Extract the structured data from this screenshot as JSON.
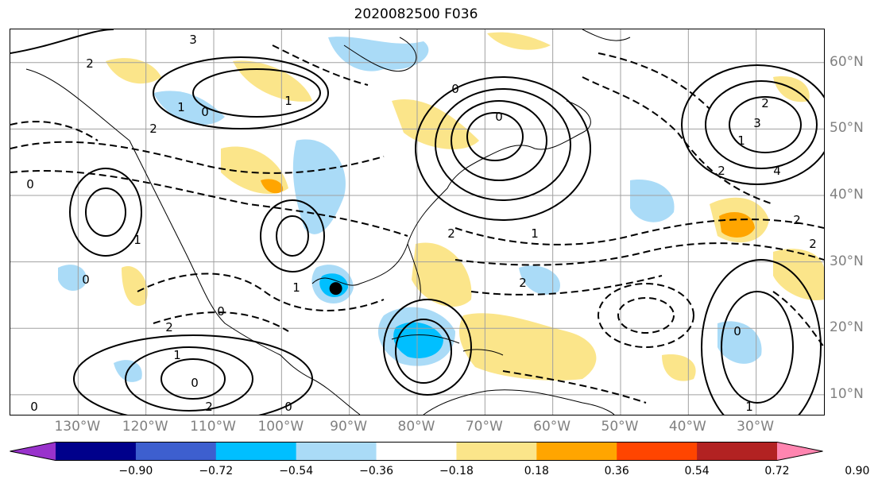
{
  "title": "2020082500 F036",
  "lat_labels": [
    {
      "text": "60°N",
      "deg": 60
    },
    {
      "text": "50°N",
      "deg": 50
    },
    {
      "text": "40°N",
      "deg": 40
    },
    {
      "text": "30°N",
      "deg": 30
    },
    {
      "text": "20°N",
      "deg": 20
    },
    {
      "text": "10°N",
      "deg": 10
    }
  ],
  "lon_labels": [
    {
      "text": "130°W",
      "deg": -130
    },
    {
      "text": "120°W",
      "deg": -120
    },
    {
      "text": "110°W",
      "deg": -110
    },
    {
      "text": "100°W",
      "deg": -100
    },
    {
      "text": "90°W",
      "deg": -90
    },
    {
      "text": "80°W",
      "deg": -80
    },
    {
      "text": "70°W",
      "deg": -70
    },
    {
      "text": "60°W",
      "deg": -60
    },
    {
      "text": "50°W",
      "deg": -50
    },
    {
      "text": "40°W",
      "deg": -40
    },
    {
      "text": "30°W",
      "deg": -30
    }
  ],
  "extent": {
    "lon_min": -140,
    "lon_max": -20,
    "lat_min": 7,
    "lat_max": 65
  },
  "colorbar": {
    "ticks": [
      "−0.90",
      "−0.72",
      "−0.54",
      "−0.36",
      "−0.18",
      "0.18",
      "0.36",
      "0.54",
      "0.72",
      "0.90"
    ],
    "colors": [
      "#9932cc",
      "#00008b",
      "#3d5fcf",
      "#00bfff",
      "#aadbf7",
      "#ffffff",
      "#fbe58a",
      "#ffa500",
      "#ff4500",
      "#b22222",
      "#ff85b0"
    ]
  },
  "contour_labels": [
    "3",
    "2",
    "1",
    "0",
    "2",
    "1",
    "0",
    "2",
    "3",
    "4",
    "2",
    "1",
    "0",
    "1",
    "0",
    "1",
    "0",
    "2",
    "2",
    "0",
    "2",
    "1",
    "0",
    "2",
    "0",
    "2",
    "2",
    "1",
    "0",
    "1",
    "0"
  ],
  "storm_marker": {
    "lon": -92,
    "lat": 26,
    "color": "#000000"
  }
}
